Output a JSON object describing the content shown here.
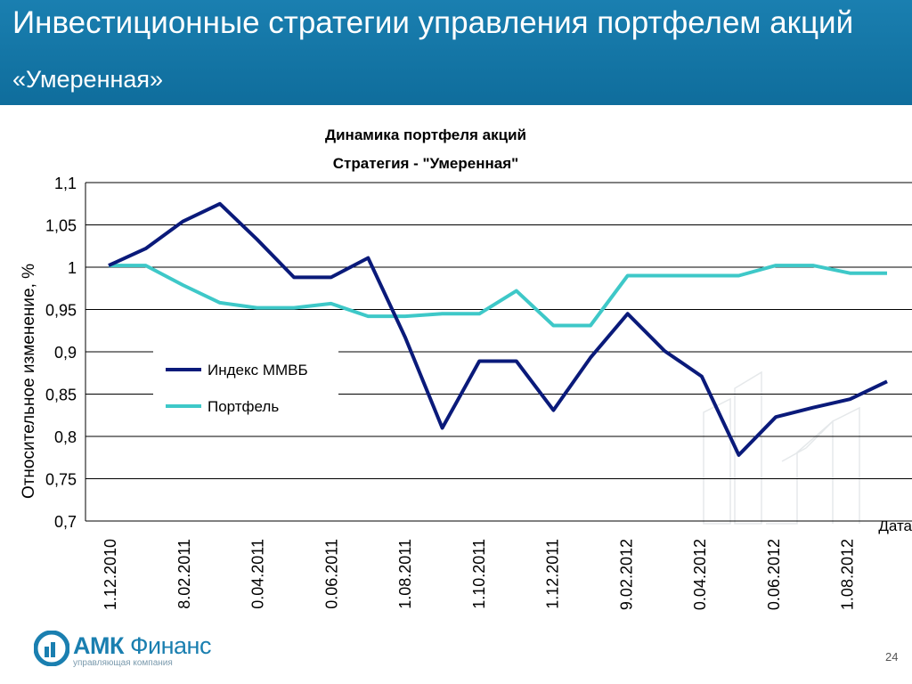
{
  "header": {
    "title": "Инвестиционные стратегии управления портфелем акций",
    "subtitle": "«Умеренная»"
  },
  "chart_data": {
    "type": "line",
    "title": "Динамика портфеля акций",
    "subtitle": "Стратегия - \"Умеренная\"",
    "ylabel": "Относительное изменение, %",
    "xlabel": "Дата",
    "ylim": [
      0.7,
      1.1
    ],
    "yticks": [
      "1,1",
      "1,05",
      "1",
      "0,95",
      "0,9",
      "0,85",
      "0,8",
      "0,75",
      "0,7"
    ],
    "xtick_labels": [
      "1.12.2010",
      "8.02.2011",
      "0.04.2011",
      "0.06.2011",
      "1.08.2011",
      "1.10.2011",
      "1.12.2011",
      "9.02.2012",
      "0.04.2012",
      "0.06.2012",
      "1.08.2012"
    ],
    "grid": "horizontal",
    "legend_position": "middle-left",
    "series": [
      {
        "name": "Индекс ММВБ",
        "color": "#0a1a7a",
        "values": [
          1.002,
          1.022,
          1.054,
          1.075,
          1.033,
          0.988,
          0.988,
          1.011,
          0.917,
          0.81,
          0.889,
          0.889,
          0.831,
          0.893,
          0.945,
          0.901,
          0.871,
          0.778,
          0.823,
          0.834,
          0.844,
          0.865
        ]
      },
      {
        "name": "Портфель",
        "color": "#3ec8c8",
        "values": [
          1.002,
          1.002,
          0.979,
          0.958,
          0.952,
          0.952,
          0.957,
          0.942,
          0.942,
          0.945,
          0.945,
          0.972,
          0.931,
          0.931,
          0.99,
          0.99,
          0.99,
          0.99,
          1.002,
          1.002,
          0.993,
          0.993
        ]
      }
    ]
  },
  "footer": {
    "logo_brand": "АМК",
    "logo_name": "Финанс",
    "logo_tagline": "управляющая компания",
    "page_number": "24"
  }
}
